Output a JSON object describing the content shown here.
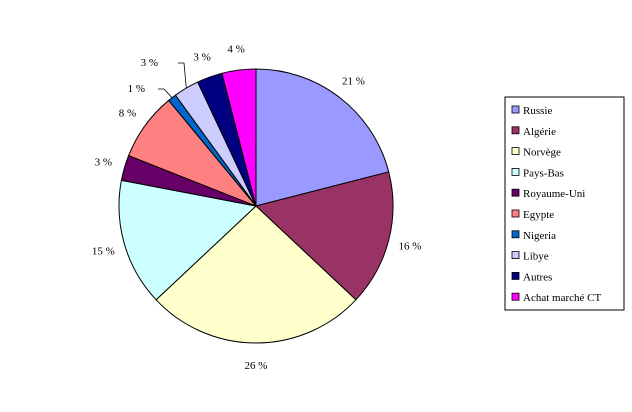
{
  "chart_data": {
    "type": "pie",
    "title": "",
    "series": [
      {
        "name": "Russie",
        "value": 21,
        "label": "21 %",
        "color": "#9999FF"
      },
      {
        "name": "Algérie",
        "value": 16,
        "label": "16 %",
        "color": "#993366"
      },
      {
        "name": "Norvège",
        "value": 26,
        "label": "26 %",
        "color": "#FFFFCC"
      },
      {
        "name": "Pays-Bas",
        "value": 15,
        "label": "15 %",
        "color": "#CCFFFF"
      },
      {
        "name": "Royaume-Uni",
        "value": 3,
        "label": "3 %",
        "color": "#660066"
      },
      {
        "name": "Egypte",
        "value": 8,
        "label": "8 %",
        "color": "#FF8080"
      },
      {
        "name": "Nigeria",
        "value": 1,
        "label": "1 %",
        "color": "#0066CC"
      },
      {
        "name": "Libye",
        "value": 3,
        "label": "3 %",
        "color": "#CCCCFF"
      },
      {
        "name": "Autres",
        "value": 3,
        "label": "3 %",
        "color": "#000080"
      },
      {
        "name": "Achat marché CT",
        "value": 4,
        "label": "4 %",
        "color": "#FF00FF"
      }
    ],
    "legend_position": "right",
    "start": "12 o'clock",
    "direction": "clockwise"
  }
}
